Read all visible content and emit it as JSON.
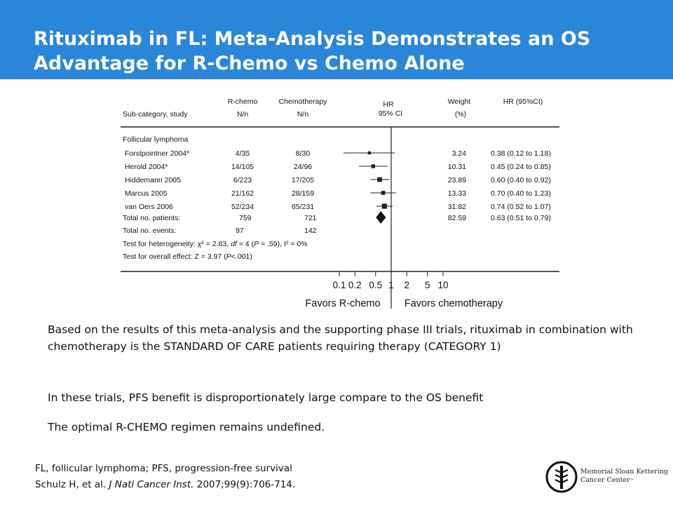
{
  "slide": {
    "title_line1": "Rituximab in FL: Meta-Analysis Demonstrates an OS",
    "title_line2": "Advantage for R-Chemo vs Chemo Alone"
  },
  "chart_data": {
    "type": "forest",
    "columns": {
      "study": "Sub-category, study",
      "rchemo_line1": "R-chemo",
      "rchemo_line2": "N/n",
      "chemo_line1": "Chemotherapy",
      "chemo_line2": "N/n",
      "hr_line1": "HR",
      "hr_line2": "95% CI",
      "weight_line1": "Weight",
      "weight_line2": "(%)",
      "hrci": "HR (95%CI)"
    },
    "subgroup": "Follicular lymphoma",
    "studies": [
      {
        "name": "Forstpointner 2004*",
        "rchemo": "4/35",
        "chemo": "8/30",
        "weight": "3.24",
        "hr_text": "0.38 (0.12 to 1.18)",
        "hr": 0.38,
        "lo": 0.12,
        "hi": 1.18
      },
      {
        "name": "Herold 2004*",
        "rchemo": "14/105",
        "chemo": "24/96",
        "weight": "10.31",
        "hr_text": "0.45 (0.24 to 0.85)",
        "hr": 0.45,
        "lo": 0.24,
        "hi": 0.85
      },
      {
        "name": "Hiddemann 2005",
        "rchemo": "6/223",
        "chemo": "17/205",
        "weight": "23.89",
        "hr_text": "0.60 (0.40 to 0.92)",
        "hr": 0.6,
        "lo": 0.4,
        "hi": 0.92
      },
      {
        "name": "Marcus 2005",
        "rchemo": "21/162",
        "chemo": "28/159",
        "weight": "13.33",
        "hr_text": "0.70 (0.40 to 1.23)",
        "hr": 0.7,
        "lo": 0.4,
        "hi": 1.23
      },
      {
        "name": "van Oers 2006",
        "rchemo": "52/234",
        "chemo": "65/231",
        "weight": "31.82",
        "hr_text": "0.74 (0.52 to 1.07)",
        "hr": 0.74,
        "lo": 0.52,
        "hi": 1.07
      }
    ],
    "total_patients": {
      "label": "Total no. patients:",
      "rchemo": "759",
      "chemo": "721",
      "weight": "82.59",
      "hr_text": "0.63 (0.51 to 0.79)",
      "hr": 0.63,
      "lo": 0.51,
      "hi": 0.79
    },
    "total_events": {
      "label": "Total no. events:",
      "rchemo": "97",
      "chemo": "142"
    },
    "heterogeneity": {
      "prefix": "Test for heterogeneity: χ² = 2.83, ",
      "df_italic": "df",
      "middle": " = 4 (",
      "p_italic": "P",
      "suffix": " = .59), I² = 0%"
    },
    "overall_effect": {
      "prefix": "Test for overall effect: Z = 3.97 (",
      "p_italic": "P",
      "suffix": "<.001)"
    },
    "x_scale": "log",
    "x_ticks": [
      {
        "value": 0.1,
        "label": "0.1"
      },
      {
        "value": 0.2,
        "label": "0.2"
      },
      {
        "value": 0.5,
        "label": "0.5"
      },
      {
        "value": 1,
        "label": "1"
      },
      {
        "value": 2,
        "label": "2"
      },
      {
        "value": 5,
        "label": "5"
      },
      {
        "value": 10,
        "label": "10"
      }
    ],
    "favors_left": "Favors R-chemo",
    "favors_right": "Favors chemotherapy"
  },
  "bullets": [
    "Based on the results of this meta-analysis  and the supporting phase III trials, rituximab in combination  with chemotherapy  is the STANDARD OF CARE patients  requiring therapy (CATEGORY  1)",
    "In these trials, PFS benefit is disproportionately  large compare to the OS benefit",
    "The optimal R-CHEMO regimen  remains undefined."
  ],
  "footnote": {
    "line1": "FL, follicular lymphoma; PFS, progression-free survival",
    "citation_prefix": "Schulz H, et al. ",
    "citation_journal": "J Natl Cancer Inst.",
    "citation_suffix": " 2007;99(9):706-714."
  },
  "logo": {
    "line1": "Memorial Sloan Kettering",
    "line2": "Cancer Center",
    "trademark": "™"
  },
  "colors": {
    "title_bar": "#2a86d8",
    "title_text": "#ffffff"
  }
}
